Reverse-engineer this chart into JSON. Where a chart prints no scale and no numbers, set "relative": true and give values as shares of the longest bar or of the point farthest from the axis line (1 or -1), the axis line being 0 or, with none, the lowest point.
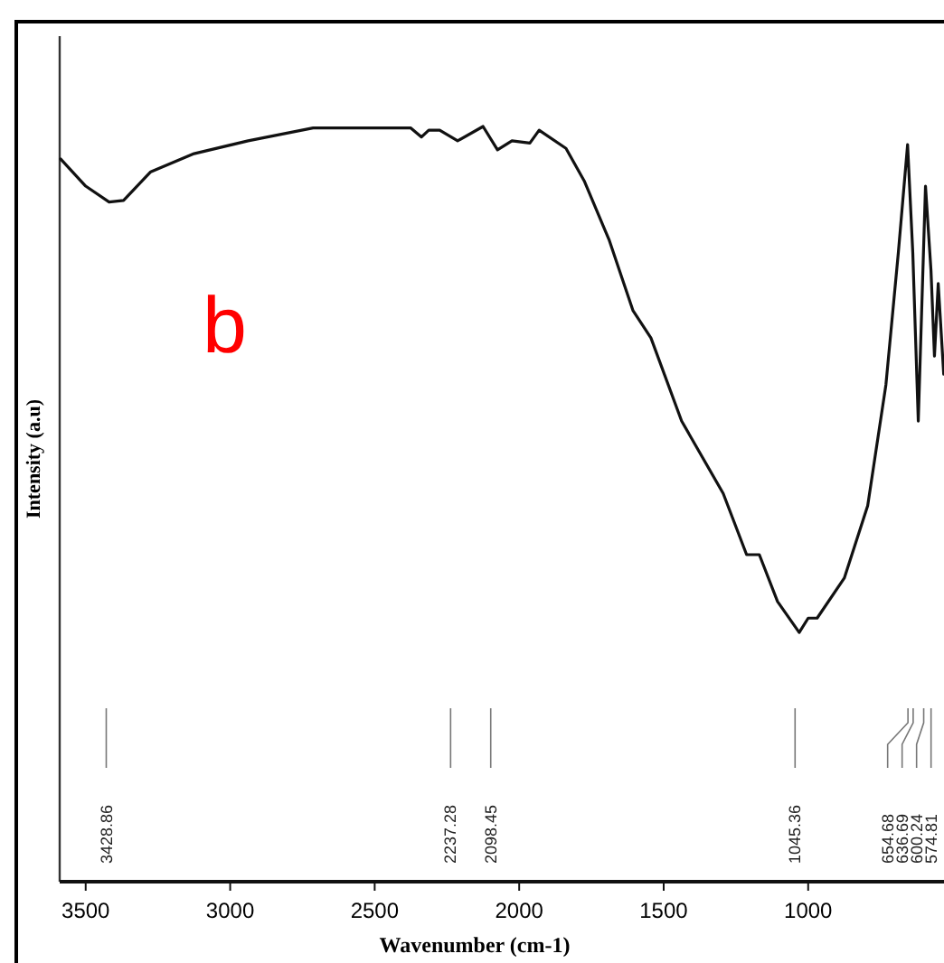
{
  "chart_data": {
    "type": "line",
    "relative": true,
    "xlabel": "Wavenumber (cm-1)",
    "ylabel": "Intensity (a.u)",
    "xlim": [
      3590,
      530
    ],
    "xticks": [
      3500,
      3000,
      2500,
      2000,
      1500,
      1000
    ],
    "x": [
      3587,
      3500,
      3419,
      3369,
      3275,
      3125,
      2938,
      2713,
      2375,
      2338,
      2313,
      2275,
      2213,
      2125,
      2075,
      2025,
      1963,
      1931,
      1838,
      1775,
      1688,
      1606,
      1544,
      1438,
      1294,
      1213,
      1169,
      1106,
      1031,
      1000,
      969,
      875,
      794,
      731,
      688,
      656,
      638,
      619,
      594,
      575,
      563,
      550,
      531
    ],
    "series": [
      {
        "color": "#111111",
        "values": [
          0.957,
          0.921,
          0.9,
          0.902,
          0.94,
          0.964,
          0.981,
          0.998,
          0.998,
          0.986,
          0.995,
          0.995,
          0.981,
          1.0,
          0.969,
          0.981,
          0.978,
          0.995,
          0.971,
          0.928,
          0.849,
          0.756,
          0.72,
          0.61,
          0.514,
          0.433,
          0.433,
          0.371,
          0.33,
          0.349,
          0.349,
          0.402,
          0.498,
          0.658,
          0.833,
          0.976,
          0.833,
          0.61,
          0.921,
          0.809,
          0.696,
          0.792,
          0.672
        ]
      }
    ],
    "annotations": [
      "b",
      "3428.86",
      "2237.28",
      "2098.45",
      "1045.36",
      "654.68",
      "636.69",
      "600.24",
      "574.81"
    ],
    "grid": false,
    "marker": "none",
    "line_style": "solid"
  }
}
